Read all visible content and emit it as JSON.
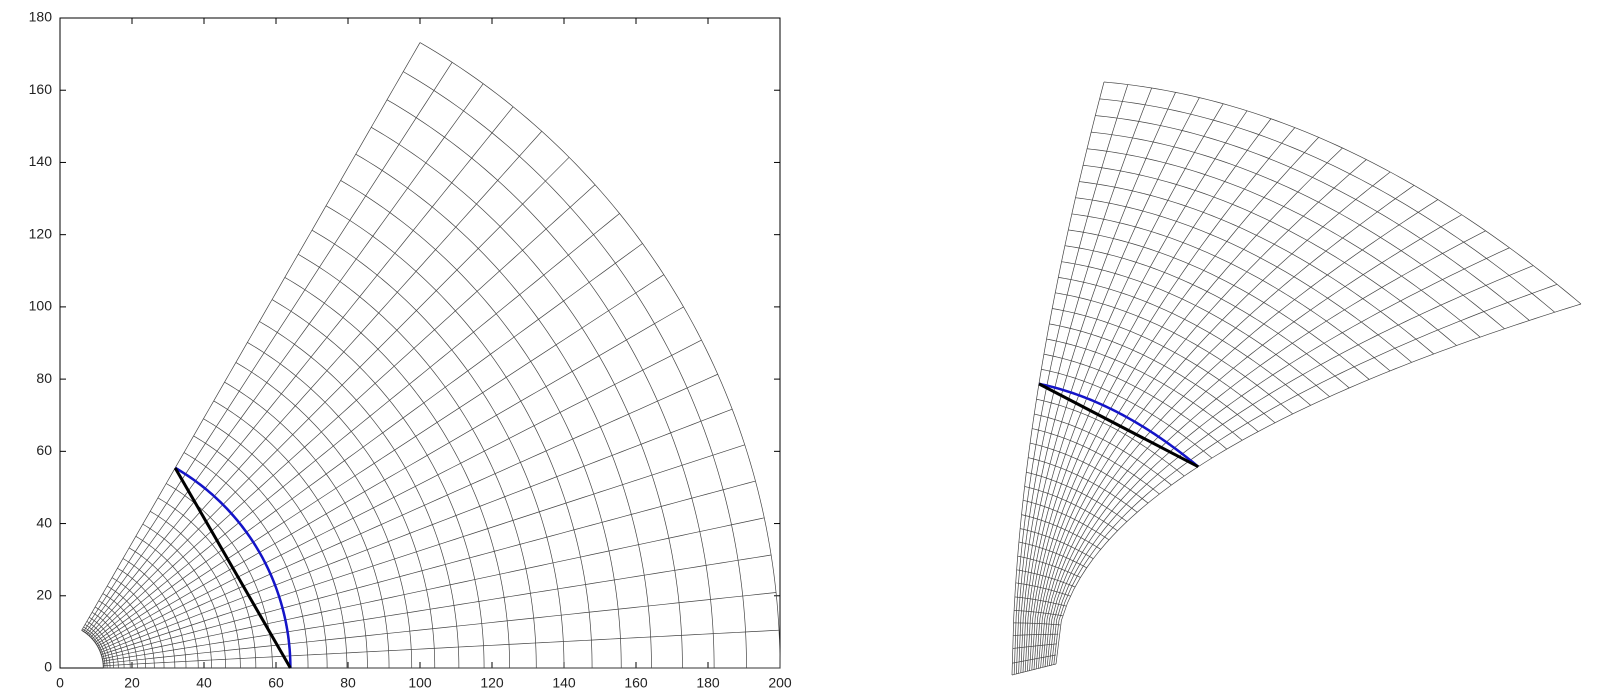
{
  "chart_data": {
    "type": "polar-mesh",
    "xlim": [
      0,
      200
    ],
    "ylim": [
      0,
      180
    ],
    "xticks": [
      0,
      20,
      40,
      60,
      80,
      100,
      120,
      140,
      160,
      180,
      200
    ],
    "yticks": [
      0,
      20,
      40,
      60,
      80,
      100,
      120,
      140,
      160,
      180
    ],
    "mesh": {
      "color": "#444444",
      "r": [
        12,
        12.1,
        12.5,
        13.1,
        13.9,
        14.9,
        16.2,
        17.8,
        19.5,
        21.5,
        23.8,
        26.2,
        28.9,
        31.9,
        35.0,
        38.4,
        42.1,
        46.0,
        50.1,
        54.4,
        59.0,
        63.8,
        68.9,
        74.2,
        79.7,
        85.4,
        91.4,
        97.7,
        104.1,
        110.8,
        117.8,
        124.9,
        132.3,
        140.0,
        147.8,
        155.9,
        164.3,
        172.9,
        181.7,
        190.7,
        200
      ],
      "theta_deg": [
        0,
        3,
        6,
        9,
        12,
        15,
        18,
        21,
        24,
        27,
        30,
        33,
        36,
        39,
        42,
        45,
        48,
        51,
        54,
        57,
        60
      ]
    },
    "arc": {
      "r": 64,
      "theta_deg": [
        0,
        60
      ],
      "color": "#1414c8"
    },
    "chord": {
      "x": [
        64,
        32
      ],
      "y": [
        0,
        55.4
      ],
      "color": "#000000"
    }
  }
}
